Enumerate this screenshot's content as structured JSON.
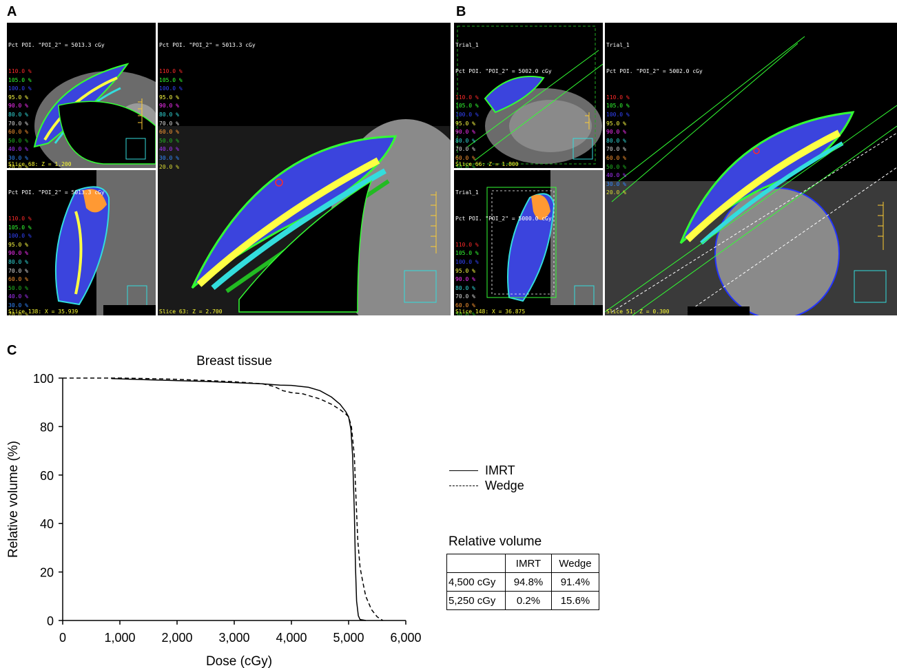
{
  "panels": {
    "a_label": "A",
    "b_label": "B",
    "c_label": "C"
  },
  "ct_a": {
    "header": "Pct POI. \"POI_2\" = 5013.3 cGy",
    "slice_axial": "Slice 68: Z = 1.200",
    "slice_sagittal": "Slice 138: X = 35.939",
    "slice_axial_large": "Slice 63: Z = 2.700"
  },
  "ct_b": {
    "trial": "Trial_1",
    "header": "Pct POI. \"POI_2\" = 5002.0 cGy",
    "header_sagittal": "Pct POI. \"POI_2\" = 5000.0 cGy",
    "slice_axial": "Slice 66: Z = 1.800",
    "slice_sagittal": "Slice 148: X = 36.875",
    "slice_axial_large": "Slice 51: Z = 0.300"
  },
  "isodose_levels": [
    {
      "label": "110.0 %",
      "color": "#ff2a2a"
    },
    {
      "label": "105.0 %",
      "color": "#33ff33"
    },
    {
      "label": "100.0 %",
      "color": "#3344ff"
    },
    {
      "label": "95.0 %",
      "color": "#ffff44"
    },
    {
      "label": "90.0 %",
      "color": "#ff33ff"
    },
    {
      "label": "80.0 %",
      "color": "#33dddd"
    },
    {
      "label": "70.0 %",
      "color": "#dddddd"
    },
    {
      "label": "60.0 %",
      "color": "#ff9933"
    },
    {
      "label": "50.0 %",
      "color": "#22bb22"
    },
    {
      "label": "40.0 %",
      "color": "#aa33ff"
    },
    {
      "label": "30.0 %",
      "color": "#3388ff"
    },
    {
      "label": "20.0 %",
      "color": "#dddd33"
    }
  ],
  "chart_data": {
    "type": "line",
    "title": "Breast tissue",
    "xlabel": "Dose (cGy)",
    "ylabel": "Relative volume (%)",
    "xlim": [
      0,
      6000
    ],
    "ylim": [
      0,
      100
    ],
    "x_ticks": [
      "0",
      "1,000",
      "2,000",
      "3,000",
      "4,000",
      "5,000",
      "6,000"
    ],
    "y_ticks": [
      "0",
      "20",
      "40",
      "60",
      "80",
      "100"
    ],
    "legend_position": "right",
    "series": [
      {
        "name": "IMRT",
        "style": "solid",
        "points": [
          [
            850,
            99.8
          ],
          [
            1500,
            99.3
          ],
          [
            2500,
            98.6
          ],
          [
            3500,
            97.6
          ],
          [
            3800,
            97.1
          ],
          [
            4000,
            97.0
          ],
          [
            4300,
            96.2
          ],
          [
            4500,
            94.8
          ],
          [
            4700,
            92.2
          ],
          [
            4850,
            89.2
          ],
          [
            4950,
            86.2
          ],
          [
            5000,
            84.0
          ],
          [
            5040,
            79.0
          ],
          [
            5070,
            68.0
          ],
          [
            5100,
            45.0
          ],
          [
            5120,
            22.0
          ],
          [
            5140,
            8.0
          ],
          [
            5170,
            2.0
          ],
          [
            5200,
            0.4
          ],
          [
            5250,
            0.2
          ],
          [
            5300,
            0.0
          ]
        ]
      },
      {
        "name": "Wedge",
        "style": "dashed",
        "points": [
          [
            0,
            100.0
          ],
          [
            500,
            100.0
          ],
          [
            1000,
            100.0
          ],
          [
            1500,
            99.8
          ],
          [
            2000,
            99.5
          ],
          [
            2500,
            99.0
          ],
          [
            3000,
            98.5
          ],
          [
            3500,
            97.6
          ],
          [
            3700,
            96.5
          ],
          [
            3850,
            94.8
          ],
          [
            4000,
            94.0
          ],
          [
            4200,
            93.5
          ],
          [
            4500,
            91.4
          ],
          [
            4700,
            89.2
          ],
          [
            4850,
            87.0
          ],
          [
            4950,
            85.2
          ],
          [
            5000,
            84.0
          ],
          [
            5050,
            80.0
          ],
          [
            5100,
            68.0
          ],
          [
            5130,
            50.0
          ],
          [
            5160,
            33.0
          ],
          [
            5200,
            22.0
          ],
          [
            5250,
            15.6
          ],
          [
            5300,
            10.0
          ],
          [
            5400,
            4.5
          ],
          [
            5500,
            1.5
          ],
          [
            5600,
            0.0
          ]
        ]
      }
    ]
  },
  "relative_volume_table": {
    "title": "Relative volume",
    "header": [
      "",
      "IMRT",
      "Wedge"
    ],
    "rows": [
      [
        "4,500 cGy",
        "94.8%",
        "91.4%"
      ],
      [
        "5,250 cGy",
        "0.2%",
        "15.6%"
      ]
    ]
  }
}
